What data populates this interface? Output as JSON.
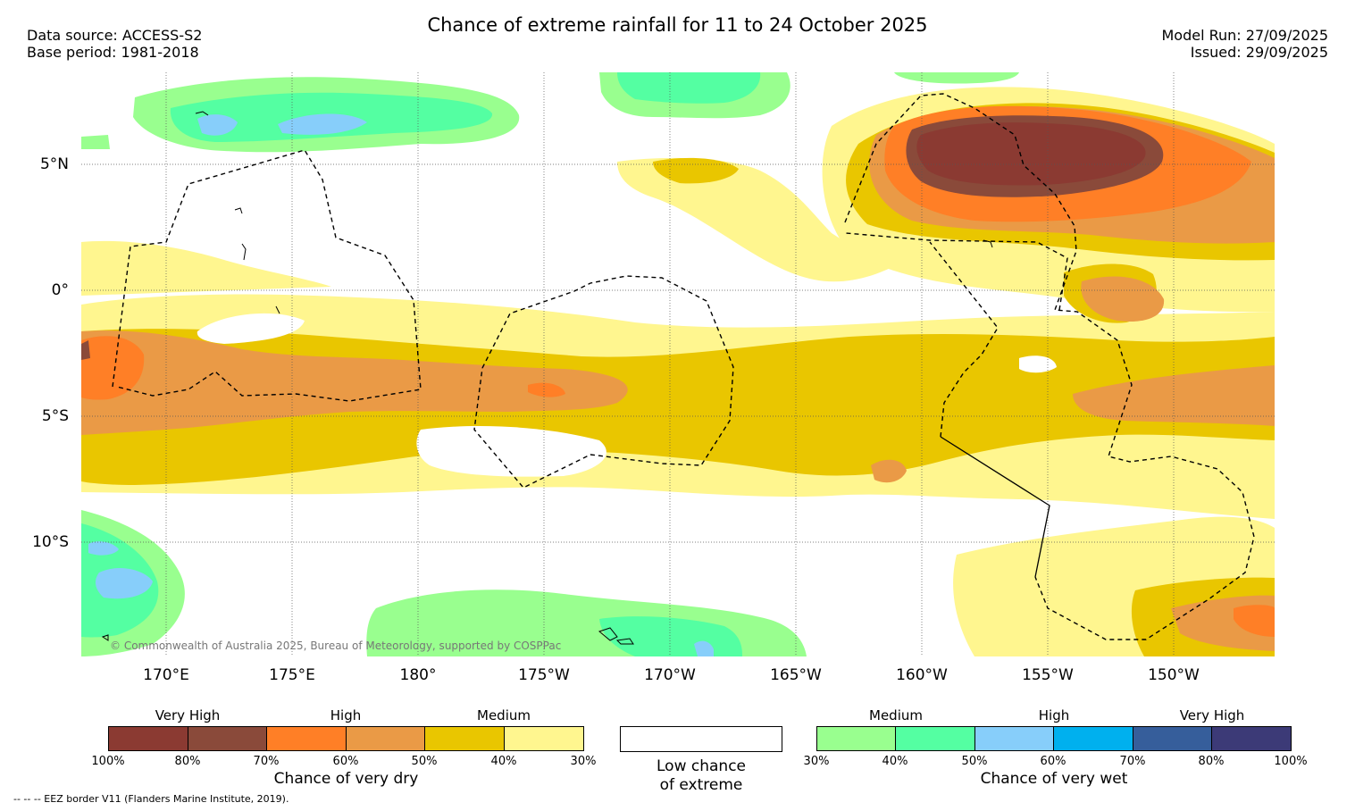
{
  "title": "Chance of extreme rainfall for 11 to 24 October 2025",
  "meta_left": {
    "data_source": "Data source: ACCESS-S2",
    "base_period": "Base period: 1981-2018"
  },
  "meta_right": {
    "model_run": "Model Run: 27/09/2025",
    "issued": "Issued: 29/09/2025"
  },
  "map": {
    "lat_labels": [
      "5°N",
      "0°",
      "5°S",
      "10°S"
    ],
    "lon_labels": [
      "170°E",
      "175°E",
      "180°",
      "175°W",
      "170°W",
      "165°W",
      "160°W",
      "155°W",
      "150°W"
    ],
    "copyright": "© Commonwealth of Australia 2025, Bureau of Meteorology, supported by COSPPac",
    "colors": {
      "dry_100_80": "#8B3A32",
      "dry_80_70": "#8A4A3A",
      "dry_70_60": "#FF7F26",
      "dry_60_50": "#EA9A46",
      "dry_50_40": "#E9C600",
      "dry_40_30": "#FFF68F",
      "wet_30_40": "#99FF8F",
      "wet_40_50": "#54FFA2",
      "wet_50_60": "#87CEFA",
      "wet_60_70": "#00B0EE",
      "wet_70_80": "#365E9B",
      "wet_80_100": "#3C3A77"
    }
  },
  "legend_dry": {
    "categories": [
      "Very High",
      "High",
      "Medium"
    ],
    "ticks": [
      "100%",
      "80%",
      "70%",
      "60%",
      "50%",
      "40%",
      "30%"
    ],
    "title": "Chance of very dry",
    "colors": [
      "#8B3A32",
      "#8A4A3A",
      "#FF7F26",
      "#EA9A46",
      "#E9C600",
      "#FFF68F"
    ]
  },
  "legend_low": {
    "line1": "Low chance",
    "line2": "of extreme"
  },
  "legend_wet": {
    "categories": [
      "Medium",
      "High",
      "Very High"
    ],
    "ticks": [
      "30%",
      "40%",
      "50%",
      "60%",
      "70%",
      "80%",
      "100%"
    ],
    "title": "Chance of very wet",
    "colors": [
      "#99FF8F",
      "#54FFA2",
      "#87CEFA",
      "#00B0EE",
      "#365E9B",
      "#3C3A77"
    ]
  },
  "eez_note": "--  --  -- EEZ border V11 (Flanders Marine Institute, 2019)."
}
